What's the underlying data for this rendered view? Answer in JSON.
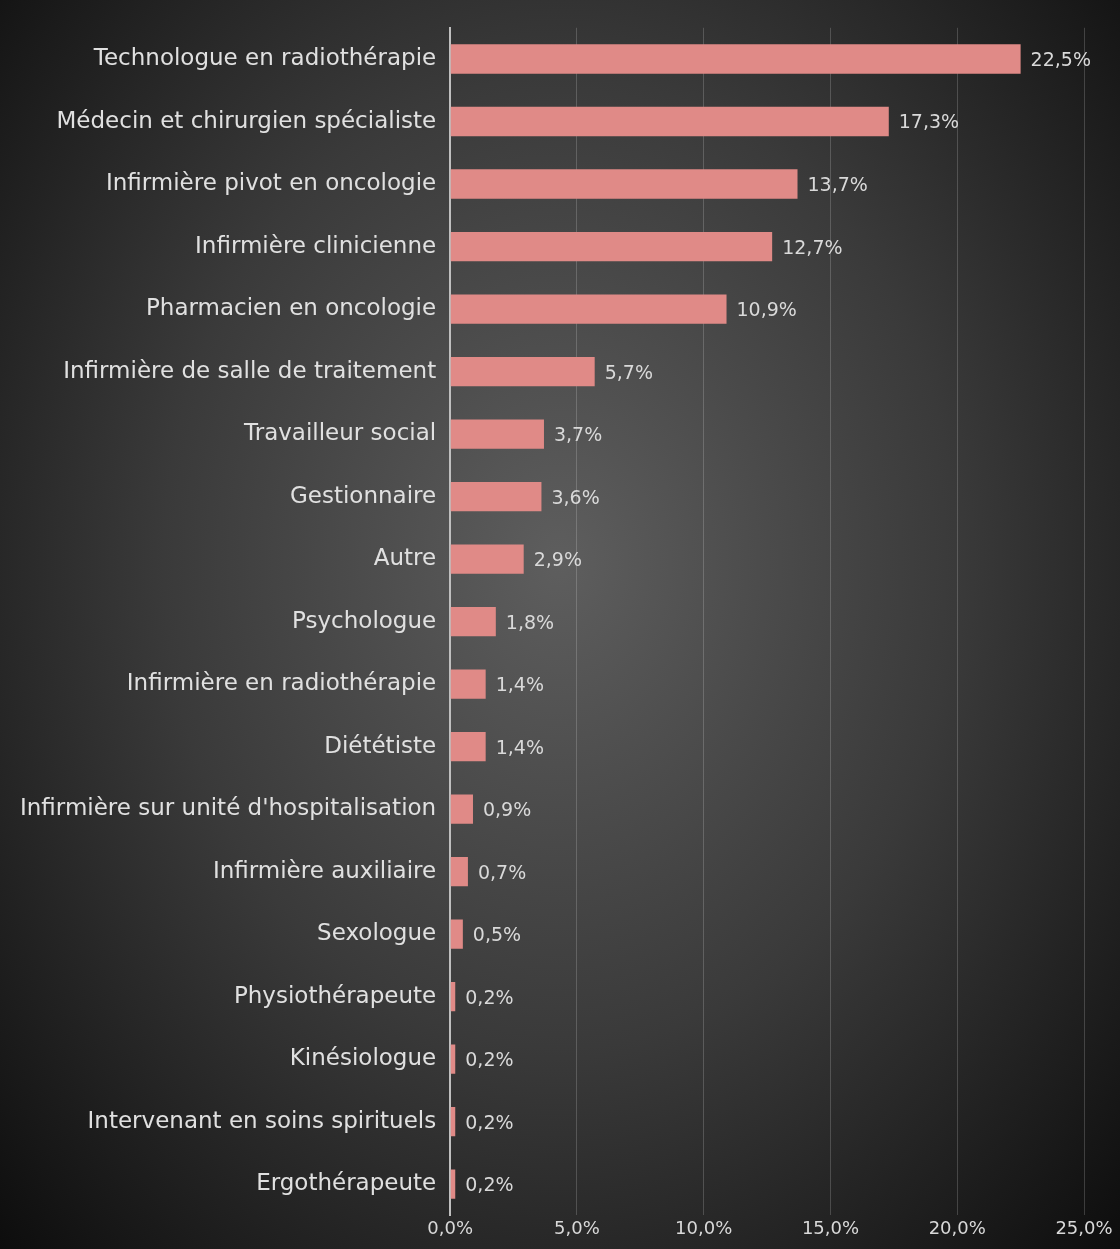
{
  "chart_data": {
    "type": "bar",
    "orientation": "horizontal",
    "categories": [
      "Technologue en radiothérapie",
      "Médecin et chirurgien spécialiste",
      "Infirmière pivot en oncologie",
      "Infirmière clinicienne",
      "Pharmacien en oncologie",
      "Infirmière de salle de traitement",
      "Travailleur social",
      "Gestionnaire",
      "Autre",
      "Psychologue",
      "Infirmière en radiothérapie",
      "Diététiste",
      "Infirmière sur unité d'hospitalisation",
      "Infirmière auxiliaire",
      "Sexologue",
      "Physiothérapeute",
      "Kinésiologue",
      "Intervenant en soins spirituels",
      "Ergothérapeute"
    ],
    "values": [
      22.5,
      17.3,
      13.7,
      12.7,
      10.9,
      5.7,
      3.7,
      3.6,
      2.9,
      1.8,
      1.4,
      1.4,
      0.9,
      0.7,
      0.5,
      0.2,
      0.2,
      0.2,
      0.2
    ],
    "value_labels": [
      "22,5%",
      "17,3%",
      "13,7%",
      "12,7%",
      "10,9%",
      "5,7%",
      "3,7%",
      "3,6%",
      "2,9%",
      "1,8%",
      "1,4%",
      "1,4%",
      "0,9%",
      "0,7%",
      "0,5%",
      "0,2%",
      "0,2%",
      "0,2%",
      "0,2%"
    ],
    "color": "#e08a87",
    "xlim": [
      0,
      25
    ],
    "xticks": [
      {
        "value": 0,
        "label": "0,0%"
      },
      {
        "value": 5,
        "label": "5,0%"
      },
      {
        "value": 10,
        "label": "10,0%"
      },
      {
        "value": 15,
        "label": "15,0%"
      },
      {
        "value": 20,
        "label": "20,0%"
      },
      {
        "value": 25,
        "label": "25,0%"
      }
    ],
    "grid": "x"
  }
}
